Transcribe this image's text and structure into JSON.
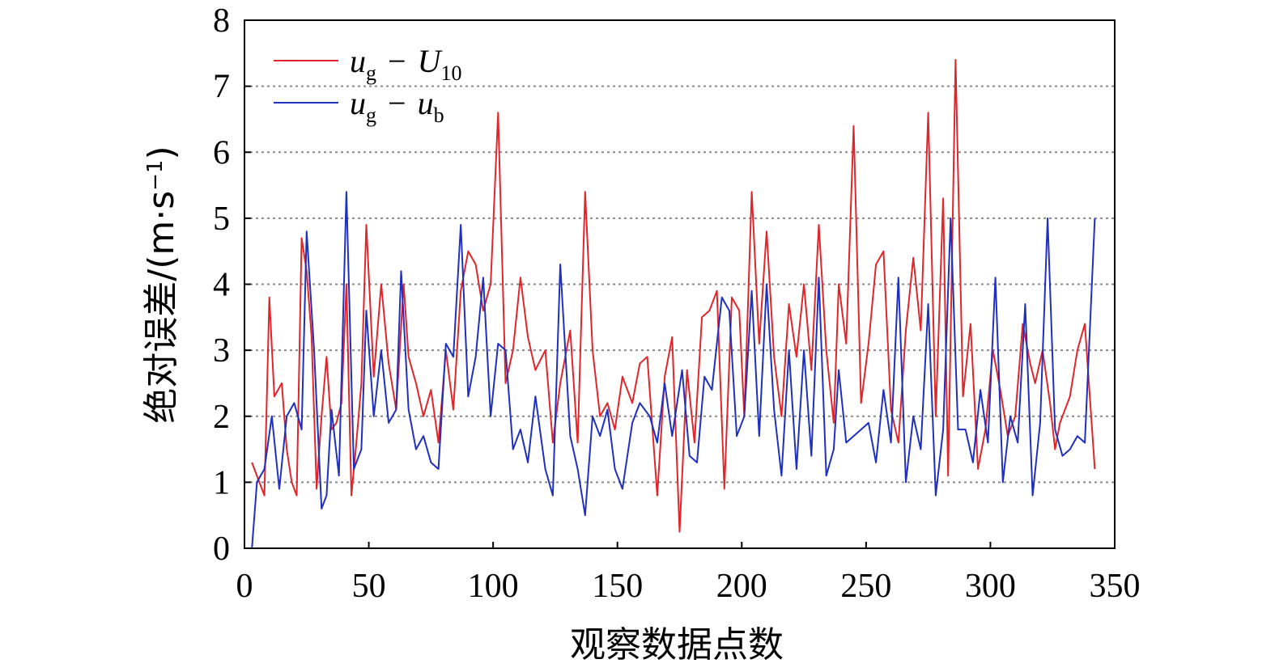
{
  "chart_data": {
    "type": "line",
    "xlabel": "观察数据点数",
    "ylabel": "绝对误差/(m·s",
    "ylabel_sup": "−1",
    "ylabel_close": ")",
    "xlim": [
      0,
      350
    ],
    "ylim": [
      0,
      8
    ],
    "xticks": [
      "0",
      "50",
      "100",
      "150",
      "200",
      "250",
      "300",
      "350"
    ],
    "yticks": [
      "0",
      "1",
      "2",
      "3",
      "4",
      "5",
      "6",
      "7",
      "8"
    ],
    "grid": "horizontal dotted",
    "legend_position": "top-left",
    "legend": [
      {
        "main": "u",
        "sub": "g",
        "op": "−",
        "main2": "U",
        "sub2": "10",
        "color": "#e0262b"
      },
      {
        "main": "u",
        "sub": "g",
        "op": "−",
        "main2": "u",
        "sub2": "b",
        "color": "#1f2fbf"
      }
    ],
    "series": [
      {
        "color": "#e0262b",
        "x": [
          3,
          6,
          8,
          10,
          12,
          15,
          17,
          19,
          21,
          23,
          25,
          27,
          29,
          31,
          33,
          35,
          37,
          39,
          41,
          43,
          45,
          47,
          49,
          52,
          55,
          58,
          61,
          64,
          66,
          69,
          72,
          75,
          78,
          81,
          84,
          87,
          90,
          93,
          96,
          99,
          102,
          105,
          108,
          111,
          114,
          117,
          121,
          124,
          127,
          131,
          134,
          137,
          140,
          143,
          146,
          149,
          152,
          156,
          159,
          162,
          166,
          169,
          172,
          175,
          178,
          181,
          184,
          187,
          190,
          193,
          196,
          199,
          201,
          204,
          207,
          210,
          213,
          216,
          219,
          222,
          225,
          228,
          231,
          234,
          237,
          239,
          242,
          245,
          248,
          251,
          254,
          257,
          260,
          263,
          266,
          269,
          272,
          275,
          278,
          281,
          283,
          286,
          289,
          292,
          295,
          298,
          301,
          304,
          307,
          310,
          313,
          316,
          318,
          321,
          324,
          326,
          328,
          332,
          335,
          338,
          342
        ],
        "values": [
          1.3,
          1.0,
          0.8,
          3.8,
          2.3,
          2.5,
          1.5,
          1.0,
          0.8,
          4.7,
          4.2,
          3.2,
          0.9,
          2.0,
          2.9,
          1.8,
          1.9,
          2.2,
          4.0,
          0.8,
          1.6,
          2.5,
          4.9,
          2.6,
          4.0,
          2.8,
          2.1,
          4.0,
          2.9,
          2.5,
          2.0,
          2.4,
          1.6,
          3.0,
          2.1,
          3.9,
          4.5,
          4.3,
          3.6,
          4.0,
          6.6,
          2.5,
          3.0,
          4.1,
          3.2,
          2.7,
          3.0,
          1.6,
          2.5,
          3.3,
          1.6,
          5.4,
          3.0,
          2.0,
          2.2,
          1.8,
          2.6,
          2.2,
          2.8,
          2.9,
          0.8,
          2.6,
          3.2,
          0.25,
          2.7,
          1.6,
          3.5,
          3.6,
          3.9,
          0.9,
          3.8,
          3.6,
          2.0,
          5.4,
          3.1,
          4.8,
          2.9,
          2.0,
          3.7,
          2.9,
          4.0,
          2.7,
          4.9,
          3.0,
          1.9,
          4.0,
          3.1,
          6.4,
          2.2,
          3.1,
          4.3,
          4.5,
          2.1,
          1.6,
          3.3,
          4.4,
          3.3,
          6.6,
          2.0,
          5.3,
          1.1,
          7.4,
          2.3,
          3.4,
          1.2,
          1.8,
          3.0,
          2.4,
          1.7,
          2.0,
          3.4,
          2.8,
          2.5,
          3.0,
          2.2,
          1.5,
          1.9,
          2.3,
          3.0,
          3.4,
          1.2
        ]
      },
      {
        "color": "#1f2fbf",
        "x": [
          3,
          5,
          8,
          11,
          14,
          17,
          20,
          23,
          25,
          28,
          31,
          33,
          35,
          38,
          41,
          44,
          47,
          49,
          52,
          55,
          58,
          61,
          63,
          66,
          69,
          72,
          75,
          78,
          81,
          84,
          87,
          90,
          93,
          96,
          99,
          102,
          105,
          108,
          111,
          114,
          117,
          121,
          124,
          127,
          131,
          134,
          137,
          140,
          143,
          146,
          149,
          152,
          156,
          159,
          163,
          166,
          169,
          172,
          176,
          179,
          182,
          185,
          188,
          192,
          195,
          198,
          201,
          204,
          207,
          210,
          213,
          216,
          219,
          222,
          225,
          228,
          231,
          234,
          237,
          239,
          242,
          245,
          248,
          251,
          254,
          257,
          260,
          263,
          266,
          269,
          272,
          275,
          278,
          281,
          284,
          287,
          290,
          293,
          296,
          299,
          302,
          305,
          308,
          311,
          314,
          317,
          320,
          323,
          326,
          329,
          332,
          335,
          338,
          342
        ],
        "values": [
          0.0,
          1.0,
          1.2,
          2.0,
          0.9,
          2.0,
          2.2,
          1.8,
          4.8,
          3.0,
          0.6,
          0.8,
          2.1,
          1.1,
          5.4,
          1.2,
          1.5,
          3.6,
          2.0,
          3.0,
          1.9,
          2.1,
          4.2,
          2.1,
          1.5,
          1.7,
          1.3,
          1.2,
          3.1,
          2.9,
          4.9,
          2.3,
          2.9,
          4.1,
          2.0,
          3.1,
          3.0,
          1.5,
          1.8,
          1.3,
          2.3,
          1.2,
          0.8,
          4.3,
          1.7,
          1.2,
          0.5,
          2.0,
          1.7,
          2.1,
          1.2,
          0.9,
          1.9,
          2.2,
          2.0,
          1.6,
          2.5,
          1.7,
          2.7,
          1.4,
          1.3,
          2.6,
          2.4,
          3.8,
          3.6,
          1.7,
          2.0,
          3.9,
          1.7,
          4.0,
          2.1,
          1.1,
          3.0,
          1.2,
          3.0,
          1.4,
          4.1,
          1.1,
          1.5,
          2.7,
          1.6,
          1.7,
          1.8,
          1.9,
          1.3,
          2.4,
          1.6,
          4.1,
          1.0,
          2.0,
          1.5,
          3.7,
          0.8,
          1.8,
          5.0,
          1.8,
          1.8,
          1.3,
          2.4,
          1.6,
          4.1,
          1.0,
          2.0,
          1.6,
          3.7,
          0.8,
          1.9,
          5.0,
          1.8,
          1.4,
          1.5,
          1.7,
          1.6,
          5.0
        ]
      }
    ]
  }
}
